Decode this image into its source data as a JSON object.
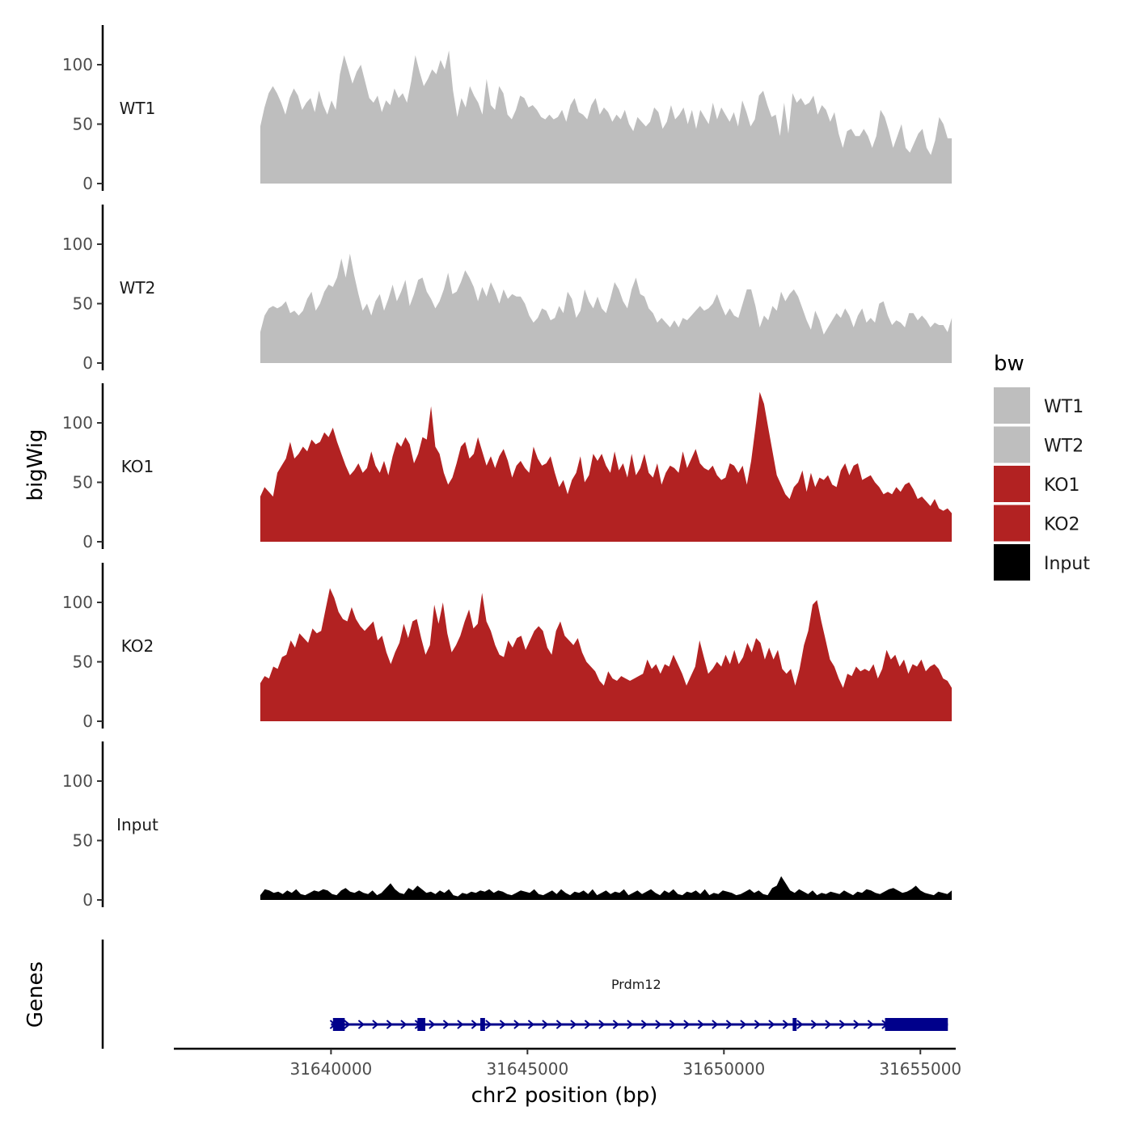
{
  "chart_data": {
    "type": "area",
    "title": "",
    "ylabel": "bigWig",
    "xlabel": "chr2 position (bp)",
    "gene_panel_label": "Genes",
    "ylim": [
      0,
      130
    ],
    "yticks": [
      0,
      50,
      100
    ],
    "xlim": [
      31636000,
      31655900
    ],
    "xticks": [
      31640000,
      31645000,
      31650000,
      31655000
    ],
    "xtick_labels": [
      "31640000",
      "31645000",
      "31650000",
      "31655000"
    ],
    "x_start": 31638200,
    "x_end": 31655800,
    "tracks": [
      {
        "name": "WT1",
        "color": "#bebebe",
        "values": [
          48,
          64,
          76,
          82,
          76,
          68,
          58,
          72,
          80,
          74,
          62,
          68,
          72,
          60,
          78,
          66,
          58,
          70,
          62,
          92,
          108,
          96,
          84,
          94,
          100,
          86,
          72,
          68,
          74,
          60,
          70,
          66,
          80,
          72,
          76,
          68,
          86,
          108,
          94,
          82,
          88,
          96,
          92,
          104,
          96,
          112,
          78,
          56,
          72,
          64,
          82,
          74,
          68,
          58,
          88,
          66,
          62,
          82,
          76,
          58,
          54,
          62,
          74,
          72,
          64,
          66,
          62,
          56,
          54,
          58,
          54,
          56,
          62,
          52,
          66,
          72,
          60,
          58,
          54,
          66,
          72,
          58,
          64,
          60,
          52,
          58,
          54,
          62,
          50,
          44,
          56,
          52,
          48,
          52,
          64,
          60,
          46,
          52,
          66,
          54,
          58,
          64,
          50,
          62,
          46,
          62,
          56,
          50,
          68,
          54,
          64,
          58,
          52,
          60,
          48,
          70,
          60,
          48,
          54,
          74,
          78,
          66,
          56,
          58,
          40,
          68,
          42,
          76,
          68,
          72,
          66,
          68,
          74,
          58,
          66,
          62,
          52,
          60,
          42,
          30,
          44,
          46,
          40,
          40,
          46,
          40,
          30,
          40,
          62,
          56,
          44,
          30,
          40,
          50,
          30,
          26,
          34,
          42,
          46,
          30,
          24,
          36,
          56,
          50,
          38,
          38
        ],
        "label_x": 31638300
      },
      {
        "name": "WT2",
        "color": "#bebebe",
        "values": [
          26,
          40,
          46,
          48,
          46,
          48,
          52,
          42,
          44,
          40,
          44,
          54,
          60,
          44,
          50,
          60,
          66,
          64,
          72,
          88,
          72,
          92,
          74,
          58,
          44,
          50,
          40,
          52,
          58,
          44,
          54,
          66,
          52,
          60,
          70,
          48,
          58,
          70,
          72,
          60,
          54,
          46,
          52,
          62,
          76,
          58,
          60,
          68,
          78,
          72,
          64,
          52,
          64,
          56,
          68,
          60,
          50,
          62,
          54,
          58,
          56,
          56,
          50,
          40,
          34,
          38,
          46,
          44,
          36,
          38,
          48,
          42,
          60,
          54,
          38,
          44,
          62,
          52,
          46,
          56,
          46,
          42,
          54,
          68,
          62,
          52,
          46,
          62,
          72,
          58,
          56,
          46,
          42,
          34,
          38,
          34,
          30,
          36,
          30,
          38,
          36,
          40,
          44,
          48,
          44,
          46,
          50,
          58,
          48,
          40,
          46,
          40,
          38,
          50,
          62,
          62,
          48,
          30,
          40,
          36,
          48,
          44,
          60,
          52,
          58,
          62,
          56,
          46,
          36,
          28,
          44,
          36,
          24,
          30,
          36,
          42,
          38,
          46,
          40,
          30,
          40,
          46,
          34,
          38,
          34,
          50,
          52,
          40,
          32,
          36,
          34,
          30,
          42,
          42,
          36,
          40,
          36,
          30,
          34,
          32,
          32,
          26,
          38
        ],
        "label_x": 31638300
      },
      {
        "name": "KO1",
        "color": "#b22222",
        "values": [
          38,
          46,
          42,
          38,
          58,
          64,
          70,
          84,
          70,
          74,
          80,
          76,
          86,
          82,
          84,
          92,
          88,
          96,
          84,
          74,
          64,
          56,
          60,
          66,
          58,
          62,
          76,
          64,
          58,
          68,
          56,
          72,
          84,
          80,
          88,
          82,
          66,
          74,
          88,
          86,
          114,
          80,
          74,
          58,
          48,
          54,
          66,
          80,
          84,
          70,
          74,
          88,
          76,
          64,
          72,
          62,
          72,
          78,
          68,
          54,
          64,
          68,
          62,
          58,
          80,
          70,
          64,
          66,
          72,
          58,
          46,
          52,
          40,
          52,
          58,
          72,
          50,
          56,
          74,
          68,
          74,
          64,
          58,
          76,
          60,
          66,
          54,
          74,
          56,
          62,
          74,
          58,
          54,
          66,
          48,
          58,
          64,
          62,
          58,
          76,
          62,
          70,
          78,
          66,
          62,
          60,
          64,
          56,
          52,
          54,
          66,
          64,
          58,
          64,
          48,
          68,
          96,
          126,
          116,
          96,
          76,
          56,
          48,
          40,
          36,
          46,
          50,
          60,
          42,
          58,
          46,
          54,
          52,
          56,
          48,
          46,
          60,
          66,
          56,
          64,
          66,
          52,
          54,
          56,
          50,
          46,
          40,
          42,
          40,
          46,
          42,
          48,
          50,
          44,
          36,
          38,
          34,
          30,
          36,
          28,
          26,
          28,
          24
        ],
        "label_x": 31638300
      },
      {
        "name": "KO2",
        "color": "#b22222",
        "values": [
          32,
          38,
          36,
          46,
          44,
          54,
          56,
          68,
          62,
          74,
          70,
          66,
          78,
          74,
          76,
          94,
          112,
          104,
          92,
          86,
          84,
          96,
          86,
          80,
          76,
          80,
          84,
          68,
          72,
          58,
          48,
          58,
          66,
          82,
          70,
          84,
          86,
          70,
          56,
          64,
          98,
          82,
          100,
          74,
          58,
          64,
          72,
          84,
          94,
          78,
          82,
          108,
          84,
          76,
          64,
          56,
          54,
          68,
          62,
          70,
          72,
          60,
          68,
          76,
          80,
          76,
          62,
          56,
          76,
          84,
          72,
          68,
          64,
          70,
          58,
          50,
          46,
          42,
          34,
          30,
          42,
          36,
          34,
          38,
          36,
          34,
          36,
          38,
          40,
          52,
          44,
          48,
          40,
          48,
          46,
          56,
          48,
          40,
          30,
          38,
          46,
          68,
          54,
          40,
          44,
          50,
          46,
          56,
          48,
          60,
          48,
          54,
          66,
          58,
          70,
          66,
          52,
          62,
          52,
          60,
          44,
          40,
          44,
          30,
          44,
          64,
          76,
          98,
          102,
          84,
          68,
          52,
          46,
          36,
          28,
          40,
          38,
          46,
          42,
          44,
          42,
          48,
          36,
          44,
          60,
          52,
          56,
          46,
          52,
          40,
          48,
          46,
          52,
          42,
          46,
          48,
          44,
          36,
          34,
          28
        ],
        "label_x": 31638300
      },
      {
        "name": "Input",
        "color": "#000000",
        "values": [
          4,
          9,
          8,
          6,
          7,
          5,
          8,
          6,
          9,
          5,
          4,
          6,
          8,
          7,
          9,
          8,
          5,
          4,
          8,
          10,
          7,
          6,
          8,
          6,
          5,
          8,
          4,
          6,
          10,
          14,
          9,
          6,
          5,
          10,
          8,
          12,
          9,
          6,
          7,
          5,
          8,
          6,
          9,
          4,
          3,
          6,
          5,
          7,
          6,
          8,
          7,
          9,
          6,
          8,
          7,
          5,
          4,
          6,
          8,
          7,
          6,
          9,
          5,
          4,
          6,
          8,
          5,
          9,
          6,
          4,
          7,
          6,
          8,
          5,
          9,
          4,
          6,
          8,
          5,
          7,
          6,
          9,
          4,
          6,
          8,
          5,
          7,
          9,
          6,
          4,
          8,
          6,
          9,
          5,
          4,
          7,
          6,
          8,
          5,
          9,
          4,
          6,
          5,
          8,
          7,
          6,
          4,
          5,
          7,
          9,
          6,
          8,
          5,
          4,
          10,
          12,
          20,
          14,
          8,
          6,
          9,
          7,
          5,
          8,
          4,
          6,
          5,
          7,
          6,
          5,
          8,
          6,
          4,
          7,
          6,
          9,
          8,
          6,
          5,
          7,
          9,
          10,
          8,
          6,
          7,
          9,
          12,
          8,
          6,
          5,
          4,
          7,
          6,
          5,
          8
        ],
        "label_x": 31638300
      }
    ],
    "legend": {
      "title": "bw",
      "position": "right",
      "entries": [
        {
          "label": "WT1",
          "color": "#bebebe"
        },
        {
          "label": "WT2",
          "color": "#bebebe"
        },
        {
          "label": "KO1",
          "color": "#b22222"
        },
        {
          "label": "KO2",
          "color": "#b22222"
        },
        {
          "label": "Input",
          "color": "#000000"
        }
      ]
    },
    "gene": {
      "name": "Prdm12",
      "color": "#00008b",
      "start": 31640000,
      "end": 31655700,
      "strand": "+",
      "exons": [
        [
          31640050,
          31640350
        ],
        [
          31642200,
          31642400
        ],
        [
          31643800,
          31643920
        ],
        [
          31651750,
          31651850
        ],
        [
          31654100,
          31655700
        ]
      ]
    }
  }
}
